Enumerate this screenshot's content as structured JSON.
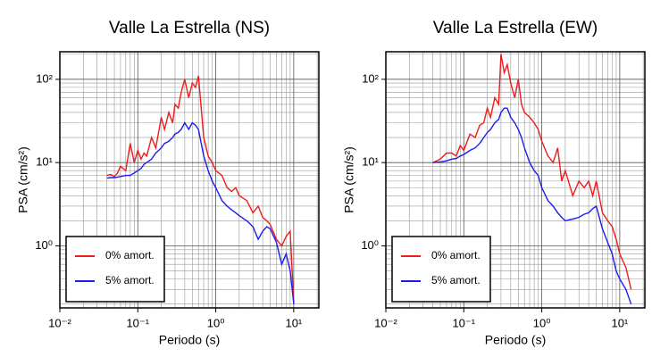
{
  "chart_data": [
    {
      "type": "line",
      "title": "Valle La Estrella (NS)",
      "xlabel": "Periodo (s)",
      "ylabel": "PSA (cm/s²)",
      "xscale": "log",
      "yscale": "log",
      "grid": true,
      "legend": "lower left",
      "xlim": [
        0.01,
        21
      ],
      "ylim": [
        0.18,
        214
      ],
      "xticks": [
        {
          "value": 0.01,
          "label": "10⁻²"
        },
        {
          "value": 0.1,
          "label": "10⁻¹"
        },
        {
          "value": 1,
          "label": "10⁰"
        },
        {
          "value": 10,
          "label": "10¹"
        }
      ],
      "yticks": [
        {
          "value": 1,
          "label": "10⁰"
        },
        {
          "value": 10,
          "label": "10¹"
        },
        {
          "value": 100,
          "label": "10²"
        }
      ],
      "x_minor_ticks": [
        0.02,
        0.03,
        0.04,
        0.05,
        0.06,
        0.07,
        0.08,
        0.09,
        0.2,
        0.3,
        0.4,
        0.5,
        0.6,
        0.7,
        0.8,
        0.9,
        2,
        3,
        4,
        5,
        6,
        7,
        8,
        9,
        20
      ],
      "y_minor_ticks": [
        0.2,
        0.3,
        0.4,
        0.5,
        0.6,
        0.7,
        0.8,
        0.9,
        2,
        3,
        4,
        5,
        6,
        7,
        8,
        9,
        20,
        30,
        40,
        50,
        60,
        70,
        80,
        90,
        200
      ],
      "x": [
        0.04,
        0.045,
        0.05,
        0.055,
        0.06,
        0.07,
        0.08,
        0.09,
        0.1,
        0.11,
        0.12,
        0.13,
        0.15,
        0.17,
        0.2,
        0.22,
        0.25,
        0.28,
        0.3,
        0.33,
        0.36,
        0.4,
        0.45,
        0.5,
        0.55,
        0.6,
        0.7,
        0.8,
        0.9,
        1.0,
        1.2,
        1.4,
        1.6,
        1.8,
        2.0,
        2.5,
        3.0,
        3.5,
        4.0,
        4.5,
        5.0,
        6.0,
        7.0,
        8.0,
        9.0,
        10.0
      ],
      "series": [
        {
          "name": "0% amort.",
          "color": "#ee1c1c",
          "values": [
            7,
            7.2,
            6.8,
            7.5,
            9,
            8,
            17,
            10,
            14,
            11,
            13,
            12,
            20,
            15,
            35,
            25,
            40,
            30,
            50,
            45,
            70,
            100,
            60,
            90,
            80,
            110,
            20,
            12,
            10,
            8,
            7,
            5,
            4.5,
            5,
            4,
            3.5,
            2.5,
            3,
            2.2,
            2,
            1.8,
            1.2,
            1.0,
            1.3,
            1.5,
            0.2
          ]
        },
        {
          "name": "5% amort.",
          "color": "#1c1cee",
          "values": [
            6.5,
            6.6,
            6.6,
            6.7,
            6.8,
            7,
            7,
            7.5,
            8,
            8.5,
            9.5,
            10,
            11,
            13,
            15,
            17,
            18,
            20,
            22,
            23,
            25,
            30,
            25,
            30,
            28,
            25,
            12,
            8,
            6,
            5,
            3.5,
            3,
            2.7,
            2.5,
            2.3,
            2,
            1.7,
            1.2,
            1.5,
            1.7,
            1.6,
            1.1,
            0.6,
            0.8,
            0.5,
            0.2
          ]
        }
      ]
    },
    {
      "type": "line",
      "title": "Valle La Estrella (EW)",
      "xlabel": "Periodo (s)",
      "ylabel": "PSA (cm/s²)",
      "xscale": "log",
      "yscale": "log",
      "grid": true,
      "legend": "lower left",
      "xlim": [
        0.01,
        21
      ],
      "ylim": [
        0.18,
        214
      ],
      "xticks": [
        {
          "value": 0.01,
          "label": "10⁻²"
        },
        {
          "value": 0.1,
          "label": "10⁻¹"
        },
        {
          "value": 1,
          "label": "10⁰"
        },
        {
          "value": 10,
          "label": "10¹"
        }
      ],
      "yticks": [
        {
          "value": 1,
          "label": "10⁰"
        },
        {
          "value": 10,
          "label": "10¹"
        },
        {
          "value": 100,
          "label": "10²"
        }
      ],
      "x_minor_ticks": [
        0.02,
        0.03,
        0.04,
        0.05,
        0.06,
        0.07,
        0.08,
        0.09,
        0.2,
        0.3,
        0.4,
        0.5,
        0.6,
        0.7,
        0.8,
        0.9,
        2,
        3,
        4,
        5,
        6,
        7,
        8,
        9,
        20
      ],
      "y_minor_ticks": [
        0.2,
        0.3,
        0.4,
        0.5,
        0.6,
        0.7,
        0.8,
        0.9,
        2,
        3,
        4,
        5,
        6,
        7,
        8,
        9,
        20,
        30,
        40,
        50,
        60,
        70,
        80,
        90,
        200
      ],
      "x": [
        0.04,
        0.05,
        0.06,
        0.07,
        0.08,
        0.09,
        0.1,
        0.12,
        0.14,
        0.16,
        0.18,
        0.2,
        0.22,
        0.25,
        0.28,
        0.3,
        0.33,
        0.36,
        0.4,
        0.45,
        0.5,
        0.55,
        0.6,
        0.7,
        0.8,
        0.9,
        1.0,
        1.2,
        1.4,
        1.6,
        1.8,
        2.0,
        2.5,
        3.0,
        3.5,
        4.0,
        4.5,
        5.0,
        6.0,
        7.0,
        8.0,
        9.0,
        10.0,
        12.0,
        14.0
      ],
      "series": [
        {
          "name": "0% amort.",
          "color": "#ee1c1c",
          "values": [
            10,
            11,
            13,
            13,
            12,
            16,
            14,
            22,
            20,
            28,
            30,
            45,
            35,
            60,
            50,
            200,
            120,
            150,
            90,
            60,
            100,
            50,
            40,
            35,
            30,
            25,
            18,
            12,
            10,
            15,
            6,
            8,
            4,
            6,
            5,
            6,
            4,
            6,
            2.5,
            2,
            1.7,
            1.2,
            0.8,
            0.55,
            0.3
          ]
        },
        {
          "name": "5% amort.",
          "color": "#1c1cee",
          "values": [
            10,
            10.2,
            10.5,
            11,
            11.2,
            12,
            12.5,
            14,
            15,
            17,
            20,
            23,
            25,
            30,
            33,
            40,
            45,
            45,
            35,
            30,
            25,
            20,
            15,
            10,
            8,
            7,
            5,
            3.5,
            3,
            2.5,
            2.2,
            2,
            2.1,
            2.2,
            2.4,
            2.5,
            2.8,
            3,
            1.6,
            1.1,
            0.8,
            0.5,
            0.4,
            0.3,
            0.2
          ]
        }
      ]
    }
  ]
}
